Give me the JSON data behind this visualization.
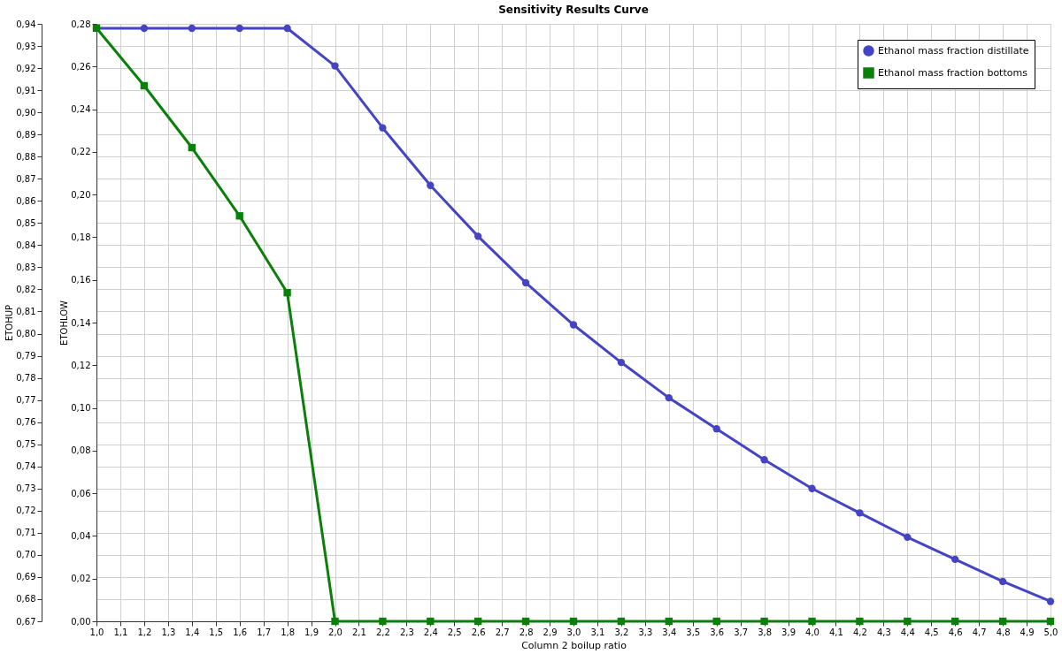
{
  "chart_data": {
    "type": "line",
    "title": "Sensitivity Results Curve",
    "xlabel": "Column 2 boilup ratio",
    "ylabel": "ETOHUP",
    "y2label": "ETOHLOW",
    "x": [
      1.0,
      1.2,
      1.4,
      1.6,
      1.8,
      2.0,
      2.2,
      2.4,
      2.6,
      2.8,
      3.0,
      3.2,
      3.4,
      3.6,
      3.8,
      4.0,
      4.2,
      4.4,
      4.6,
      4.8,
      5.0
    ],
    "series": [
      {
        "name": "Ethanol mass fraction distillate",
        "color": "#4444c4",
        "marker": "circle",
        "values": [
          0.938,
          0.938,
          0.938,
          0.938,
          0.938,
          0.921,
          0.893,
          0.867,
          0.844,
          0.823,
          0.804,
          0.787,
          0.771,
          0.757,
          0.743,
          0.73,
          0.719,
          0.708,
          0.698,
          0.688,
          0.679
        ]
      },
      {
        "name": "Ethanol mass fraction bottoms",
        "color": "#0a800a",
        "marker": "square",
        "axis": "y2",
        "values": [
          0.278,
          0.251,
          0.222,
          0.19,
          0.154,
          0,
          0,
          0,
          0,
          0,
          0,
          0,
          0,
          0,
          0,
          0,
          0,
          0,
          0,
          0,
          0
        ]
      }
    ],
    "xlim": [
      1.0,
      5.0
    ],
    "xticks": [
      {
        "value": 1.0,
        "label": "1,0"
      },
      {
        "value": 1.1,
        "label": "1,1"
      },
      {
        "value": 1.2,
        "label": "1,2"
      },
      {
        "value": 1.3,
        "label": "1,3"
      },
      {
        "value": 1.4,
        "label": "1,4"
      },
      {
        "value": 1.5,
        "label": "1,5"
      },
      {
        "value": 1.6,
        "label": "1,6"
      },
      {
        "value": 1.7,
        "label": "1,7"
      },
      {
        "value": 1.8,
        "label": "1,8"
      },
      {
        "value": 1.9,
        "label": "1,9"
      },
      {
        "value": 2.0,
        "label": "2,0"
      },
      {
        "value": 2.1,
        "label": "2,1"
      },
      {
        "value": 2.2,
        "label": "2,2"
      },
      {
        "value": 2.3,
        "label": "2,3"
      },
      {
        "value": 2.4,
        "label": "2,4"
      },
      {
        "value": 2.5,
        "label": "2,5"
      },
      {
        "value": 2.6,
        "label": "2,6"
      },
      {
        "value": 2.7,
        "label": "2,7"
      },
      {
        "value": 2.8,
        "label": "2,8"
      },
      {
        "value": 2.9,
        "label": "2,9"
      },
      {
        "value": 3.0,
        "label": "3,0"
      },
      {
        "value": 3.1,
        "label": "3,1"
      },
      {
        "value": 3.2,
        "label": "3,2"
      },
      {
        "value": 3.3,
        "label": "3,3"
      },
      {
        "value": 3.4,
        "label": "3,4"
      },
      {
        "value": 3.5,
        "label": "3,5"
      },
      {
        "value": 3.6,
        "label": "3,6"
      },
      {
        "value": 3.7,
        "label": "3,7"
      },
      {
        "value": 3.8,
        "label": "3,8"
      },
      {
        "value": 3.9,
        "label": "3,9"
      },
      {
        "value": 4.0,
        "label": "4,0"
      },
      {
        "value": 4.1,
        "label": "4,1"
      },
      {
        "value": 4.2,
        "label": "4,2"
      },
      {
        "value": 4.3,
        "label": "4,3"
      },
      {
        "value": 4.4,
        "label": "4,4"
      },
      {
        "value": 4.5,
        "label": "4,5"
      },
      {
        "value": 4.6,
        "label": "4,6"
      },
      {
        "value": 4.7,
        "label": "4,7"
      },
      {
        "value": 4.8,
        "label": "4,8"
      },
      {
        "value": 4.9,
        "label": "4,9"
      },
      {
        "value": 5.0,
        "label": "5,0"
      }
    ],
    "ylim": [
      0.67,
      0.94
    ],
    "yticks": [
      {
        "value": 0.67,
        "label": "0,67"
      },
      {
        "value": 0.68,
        "label": "0,68"
      },
      {
        "value": 0.69,
        "label": "0,69"
      },
      {
        "value": 0.7,
        "label": "0,70"
      },
      {
        "value": 0.71,
        "label": "0,71"
      },
      {
        "value": 0.72,
        "label": "0,72"
      },
      {
        "value": 0.73,
        "label": "0,73"
      },
      {
        "value": 0.74,
        "label": "0,74"
      },
      {
        "value": 0.75,
        "label": "0,75"
      },
      {
        "value": 0.76,
        "label": "0,76"
      },
      {
        "value": 0.77,
        "label": "0,77"
      },
      {
        "value": 0.78,
        "label": "0,78"
      },
      {
        "value": 0.79,
        "label": "0,79"
      },
      {
        "value": 0.8,
        "label": "0,80"
      },
      {
        "value": 0.81,
        "label": "0,81"
      },
      {
        "value": 0.82,
        "label": "0,82"
      },
      {
        "value": 0.83,
        "label": "0,83"
      },
      {
        "value": 0.84,
        "label": "0,84"
      },
      {
        "value": 0.85,
        "label": "0,85"
      },
      {
        "value": 0.86,
        "label": "0,86"
      },
      {
        "value": 0.87,
        "label": "0,87"
      },
      {
        "value": 0.88,
        "label": "0,88"
      },
      {
        "value": 0.89,
        "label": "0,89"
      },
      {
        "value": 0.9,
        "label": "0,90"
      },
      {
        "value": 0.91,
        "label": "0,91"
      },
      {
        "value": 0.92,
        "label": "0,92"
      },
      {
        "value": 0.93,
        "label": "0,93"
      },
      {
        "value": 0.94,
        "label": "0,94"
      }
    ],
    "y2lim": [
      0.0,
      0.28
    ],
    "y2ticks": [
      {
        "value": 0.0,
        "label": "0,00"
      },
      {
        "value": 0.02,
        "label": "0,02"
      },
      {
        "value": 0.04,
        "label": "0,04"
      },
      {
        "value": 0.06,
        "label": "0,06"
      },
      {
        "value": 0.08,
        "label": "0,08"
      },
      {
        "value": 0.1,
        "label": "0,10"
      },
      {
        "value": 0.12,
        "label": "0,12"
      },
      {
        "value": 0.14,
        "label": "0,14"
      },
      {
        "value": 0.16,
        "label": "0,16"
      },
      {
        "value": 0.18,
        "label": "0,18"
      },
      {
        "value": 0.2,
        "label": "0,20"
      },
      {
        "value": 0.22,
        "label": "0,22"
      },
      {
        "value": 0.24,
        "label": "0,24"
      },
      {
        "value": 0.26,
        "label": "0,26"
      },
      {
        "value": 0.28,
        "label": "0,28"
      }
    ],
    "grid": true,
    "legend": "top right",
    "line_style": "solid"
  }
}
